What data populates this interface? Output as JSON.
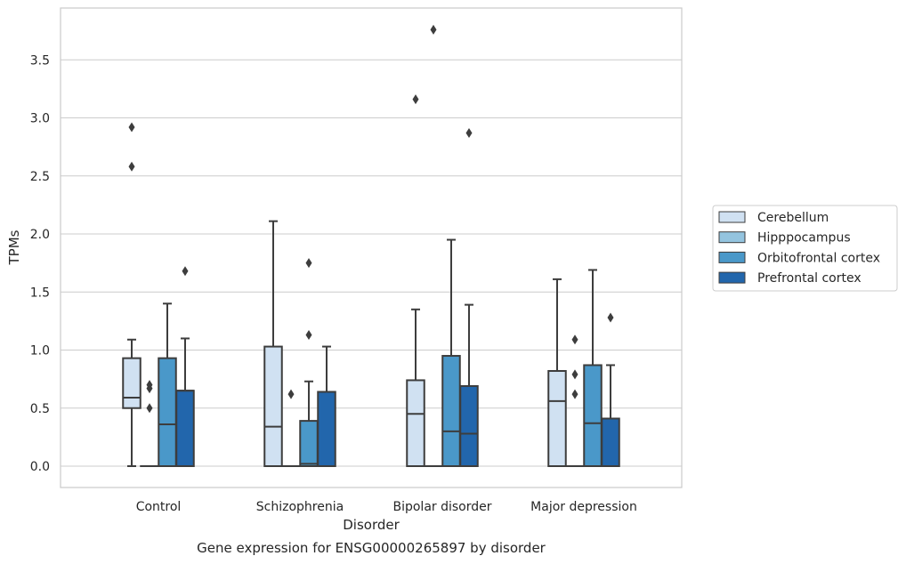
{
  "chart_data": {
    "type": "box",
    "xlabel": "Disorder",
    "ylabel": "TPMs",
    "caption": "Gene expression for ENSG00000265897 by disorder",
    "ylim": [
      -0.18,
      3.97
    ],
    "yticks": [
      "0.0",
      "0.5",
      "1.0",
      "1.5",
      "2.0",
      "2.5",
      "3.0",
      "3.5"
    ],
    "grid": "horizontal",
    "legend_placement": "right",
    "categories": [
      "Control",
      "Schizophrenia",
      "Bipolar disorder",
      "Major depression"
    ],
    "series": [
      {
        "name": "Cerebellum",
        "color": "#d0e1f2",
        "boxes": [
          {
            "q1": 0.5,
            "median": 0.59,
            "q3": 0.93,
            "whislo": 0.0,
            "whishi": 1.09,
            "fliers": [
              2.58,
              2.92
            ]
          },
          {
            "q1": 0.0,
            "median": 0.34,
            "q3": 1.03,
            "whislo": 0.0,
            "whishi": 2.11,
            "fliers": []
          },
          {
            "q1": 0.0,
            "median": 0.45,
            "q3": 0.74,
            "whislo": 0.0,
            "whishi": 1.35,
            "fliers": [
              3.16
            ]
          },
          {
            "q1": 0.0,
            "median": 0.56,
            "q3": 0.82,
            "whislo": 0.0,
            "whishi": 1.61,
            "fliers": []
          }
        ]
      },
      {
        "name": "Hipppocampus",
        "color": "#94c4df",
        "boxes": [
          {
            "q1": 0.0,
            "median": 0.0,
            "q3": 0.0,
            "whislo": 0.0,
            "whishi": 0.0,
            "fliers": [
              0.5,
              0.67,
              0.7
            ]
          },
          {
            "q1": 0.0,
            "median": 0.0,
            "q3": 0.0,
            "whislo": 0.0,
            "whishi": 0.0,
            "fliers": [
              0.62
            ]
          },
          {
            "q1": 0.0,
            "median": 0.0,
            "q3": 0.0,
            "whislo": 0.0,
            "whishi": 0.0,
            "fliers": [
              3.76
            ]
          },
          {
            "q1": 0.0,
            "median": 0.0,
            "q3": 0.0,
            "whislo": 0.0,
            "whishi": 0.0,
            "fliers": [
              0.62,
              0.79,
              1.09
            ]
          }
        ]
      },
      {
        "name": "Orbitofrontal cortex",
        "color": "#4a98c9",
        "boxes": [
          {
            "q1": 0.0,
            "median": 0.36,
            "q3": 0.93,
            "whislo": 0.0,
            "whishi": 1.4,
            "fliers": []
          },
          {
            "q1": 0.0,
            "median": 0.02,
            "q3": 0.39,
            "whislo": 0.0,
            "whishi": 0.73,
            "fliers": [
              1.13,
              1.75
            ]
          },
          {
            "q1": 0.0,
            "median": 0.3,
            "q3": 0.95,
            "whislo": 0.0,
            "whishi": 1.95,
            "fliers": []
          },
          {
            "q1": 0.0,
            "median": 0.37,
            "q3": 0.87,
            "whislo": 0.0,
            "whishi": 1.69,
            "fliers": []
          }
        ]
      },
      {
        "name": "Prefrontal cortex",
        "color": "#2266ac",
        "boxes": [
          {
            "q1": 0.0,
            "median": 0.65,
            "q3": 0.65,
            "whislo": 0.0,
            "whishi": 1.1,
            "fliers": [
              1.68
            ]
          },
          {
            "q1": 0.0,
            "median": 0.64,
            "q3": 0.64,
            "whislo": 0.0,
            "whishi": 1.03,
            "fliers": []
          },
          {
            "q1": 0.0,
            "median": 0.28,
            "q3": 0.69,
            "whislo": 0.0,
            "whishi": 1.39,
            "fliers": [
              2.87
            ]
          },
          {
            "q1": 0.0,
            "median": 0.41,
            "q3": 0.41,
            "whislo": 0.0,
            "whishi": 0.87,
            "fliers": [
              1.28
            ]
          }
        ]
      }
    ]
  }
}
